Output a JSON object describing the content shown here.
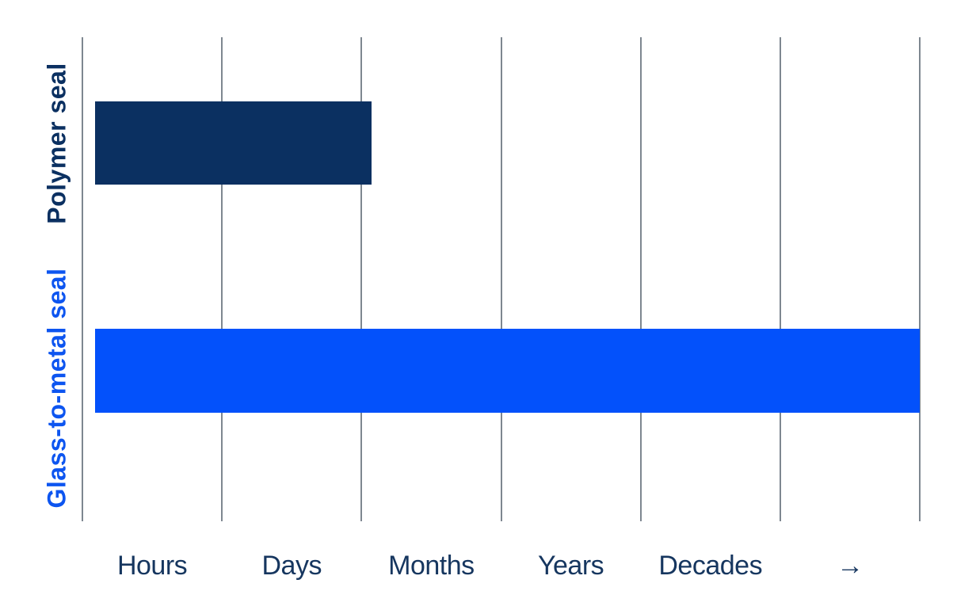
{
  "chart_data": {
    "type": "bar",
    "orientation": "horizontal",
    "title": "",
    "xlabel": "",
    "ylabel": "",
    "x_tick_labels": [
      "Hours",
      "Days",
      "Months",
      "Years",
      "Decades",
      "→"
    ],
    "x_axis_range_segments": [
      0,
      6
    ],
    "gridline_count": 7,
    "grid": true,
    "legend": false,
    "bars": [
      {
        "label": "Polymer seal",
        "color": "#0b3061",
        "label_color": "#0b3061",
        "start_segments": 0.09,
        "end_segments": 2.07
      },
      {
        "label": "Glass-to-metal seal",
        "color": "#0351fb",
        "label_color": "#0d55f0",
        "start_segments": 0.09,
        "end_segments": 6.0
      }
    ],
    "colors": {
      "background": "#ffffff",
      "gridline": "#7e8790",
      "tick_label": "#16365f"
    }
  }
}
